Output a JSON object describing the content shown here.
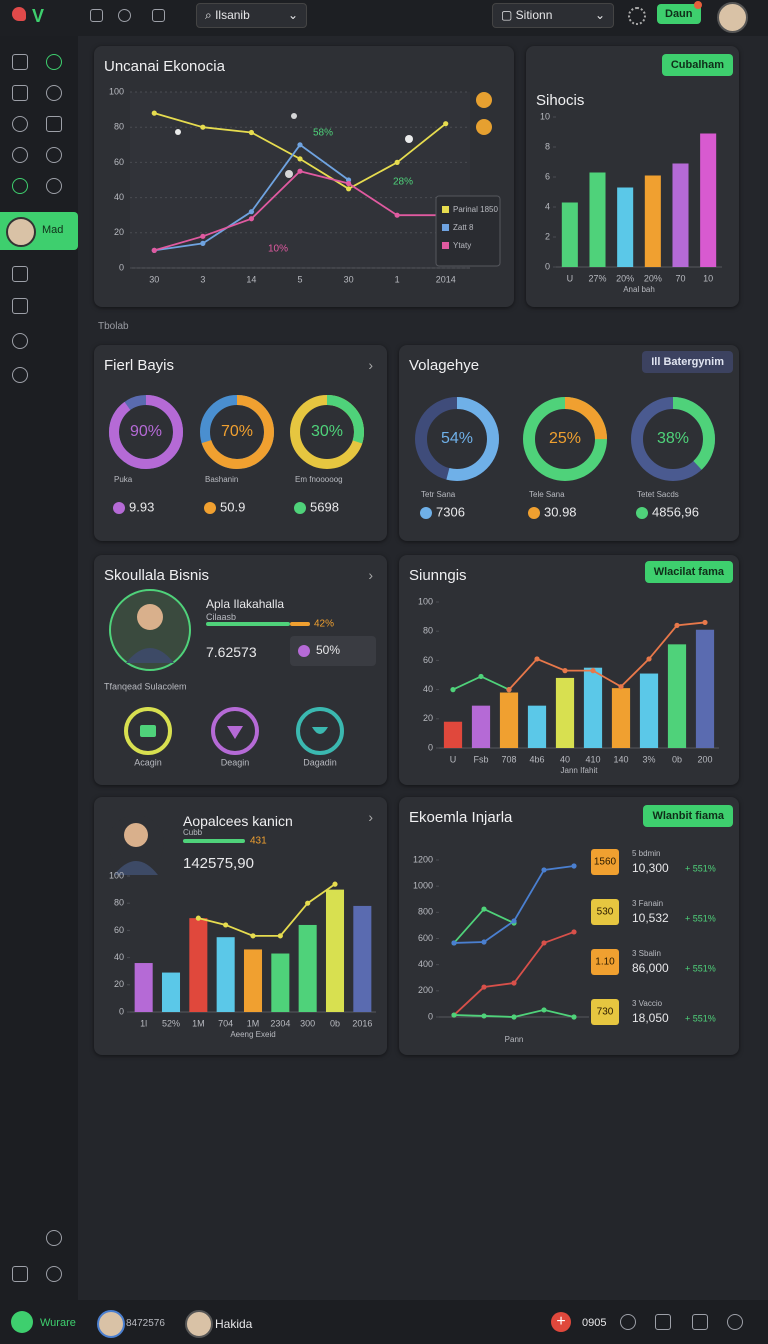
{
  "topbar": {
    "search": "Ilsanib",
    "select": "Sitionn",
    "button": "Daun"
  },
  "sidebar": {
    "active": "Mad"
  },
  "section_label": "Tbolab",
  "panels": [
    {
      "title": "Uncanai Ekonocia",
      "chart": {
        "type": "line",
        "categories": [
          "30",
          "3",
          "14",
          "5",
          "30",
          "1",
          "2014"
        ],
        "ylim": [
          0,
          100
        ],
        "yticks": [
          0,
          20,
          40,
          60,
          80,
          100
        ],
        "grid": true,
        "legend": "right",
        "annotations": [
          "58%",
          "10%",
          "28%"
        ],
        "series": [
          {
            "name": "Parinal 1850",
            "color": "#e6dc4f",
            "values": [
              88,
              80,
              77,
              62,
              45,
              60,
              82
            ]
          },
          {
            "name": "Zatt 8",
            "color": "#6fa3e0",
            "values": [
              10,
              14,
              32,
              70,
              50,
              null,
              null
            ]
          },
          {
            "name": "Ytaty",
            "color": "#e05aa0",
            "values": [
              10,
              18,
              28,
              55,
              48,
              30,
              30
            ]
          }
        ]
      }
    },
    {
      "title": "Sihocis",
      "button": "Cubalham",
      "chart": {
        "type": "bar",
        "x_label": "Anal bah",
        "categories": [
          "U",
          "27%",
          "20%",
          "20%",
          "70",
          "10"
        ],
        "values": [
          4.3,
          6.3,
          5.3,
          6.1,
          6.9,
          8.9
        ],
        "colors": [
          "#4fd27a",
          "#4fd27a",
          "#5bc8e8",
          "#f0a030",
          "#b56ad6",
          "#d85ad0"
        ],
        "ylim": [
          0,
          10
        ],
        "yticks": [
          0,
          2,
          4,
          6,
          8,
          10
        ],
        "grid": false
      }
    },
    {
      "title": "Fierl Bayis",
      "donuts": {
        "values": [
          90,
          70,
          30
        ],
        "value_labels": [
          "90%",
          "70%",
          "30%"
        ],
        "colors": [
          "#b56ad6",
          "#f0a030",
          "#4fd27a"
        ],
        "track_colors": [
          "#5a6bb0",
          "#4a8fd0",
          "#e6c640"
        ],
        "labels": [
          "Puka",
          "Bashanin",
          "Em fnooooog"
        ],
        "stats": [
          "9.93",
          "50.9",
          "5698"
        ]
      }
    },
    {
      "title": "Volagehye",
      "button": "Ill Batergynim",
      "donuts": {
        "values": [
          54,
          25,
          38
        ],
        "value_labels": [
          "54%",
          "25%",
          "38%"
        ],
        "colors": [
          "#6fb0e8",
          "#f0a030",
          "#4fd27a"
        ],
        "track_colors": [
          "#3f4c7a",
          "#4fd27a",
          "#4a5a90"
        ],
        "labels": [
          "Tetr Sana",
          "Tele Sana",
          "Tetet Sacds"
        ],
        "stats": [
          "7306",
          "30.98",
          "4856,96"
        ]
      }
    },
    {
      "title": "Skoullala Bisnis",
      "profile": {
        "name": "Apla Ilakahalla",
        "subtitle": "Cilaasb",
        "progress": {
          "value": 42,
          "label": "42%"
        },
        "amount": "7.62573",
        "chip": "50%"
      },
      "caption": "Tfanqead Sulacolem",
      "actions": [
        "Acagin",
        "Deagin",
        "Dagadin"
      ]
    },
    {
      "title": "Siunngis",
      "button": "Wlacilat fama",
      "chart": {
        "type": "combo",
        "x_label": "Jann Ifahit",
        "categories": [
          "U",
          "Fsb",
          "708",
          "4b6",
          "40",
          "410",
          "140",
          "3%",
          "0b",
          "200"
        ],
        "values": [
          18,
          29,
          38,
          29,
          48,
          55,
          41,
          51,
          71,
          81
        ],
        "colors": [
          "#e0483c",
          "#b56ad6",
          "#f0a030",
          "#5bc8e8",
          "#d8e050",
          "#5bc8e8",
          "#f0a030",
          "#5bc8e8",
          "#4fd27a",
          "#5a6bb0"
        ],
        "series": [
          {
            "color": "#4fd27a",
            "values": [
              40,
              49,
              40,
              null,
              null,
              null,
              null,
              null,
              null,
              null
            ]
          },
          {
            "color": "#e8784a",
            "values": [
              null,
              null,
              40,
              61,
              53,
              53,
              42,
              61,
              84,
              86
            ]
          }
        ],
        "ylim": [
          0,
          100
        ],
        "yticks": [
          0,
          20,
          40,
          60,
          80,
          100
        ],
        "grid": false
      }
    },
    {
      "title": "Aopalcees kanicn",
      "profile": {
        "subtitle": "Cubb",
        "badge": "431",
        "amount": "142575,90"
      },
      "chart": {
        "type": "combo",
        "x_label": "Aeeng Exeid",
        "categories": [
          "1l",
          "52%",
          "1M",
          "704",
          "1M",
          "2304",
          "300",
          "0b",
          "2016"
        ],
        "values": [
          36,
          29,
          69,
          55,
          46,
          43,
          64,
          90,
          78
        ],
        "colors": [
          "#b56ad6",
          "#5bc8e8",
          "#e0483c",
          "#5bc8e8",
          "#f0a030",
          "#4fd27a",
          "#4fd27a",
          "#d8e050",
          "#5a6bb0"
        ],
        "series": [
          {
            "color": "#e6dc4f",
            "values": [
              null,
              null,
              69,
              64,
              56,
              56,
              80,
              94,
              null
            ]
          }
        ],
        "ylim": [
          0,
          100
        ],
        "yticks": [
          0,
          20,
          40,
          60,
          80,
          100
        ],
        "grid": false
      }
    },
    {
      "title": "Ekoemla Injarla",
      "button": "Wlanbit fiama",
      "chart": {
        "type": "line",
        "x_label": "Pann",
        "categories": [
          null,
          null,
          null,
          null,
          null
        ],
        "ylim": [
          0,
          1200
        ],
        "yticks": [
          0,
          200,
          400,
          600,
          800,
          1000,
          1200
        ],
        "grid": false,
        "series": [
          {
            "color": "#4fd27a",
            "values": [
              566,
              825,
              718,
              null,
              null
            ]
          },
          {
            "color": "#4a7fd0",
            "values": [
              566,
              573,
              734,
              1124,
              1154
            ]
          },
          {
            "color": "#d8504a",
            "values": [
              15,
              229,
              260,
              566,
              650
            ]
          },
          {
            "color": "#4fd27a",
            "values": [
              15,
              8,
              0,
              54,
              0
            ]
          }
        ]
      },
      "list": [
        {
          "badge": "1560",
          "name": "5 bdmin",
          "amount": "10,300",
          "change": "+ 551%"
        },
        {
          "badge": "530",
          "name": "3 Fanain",
          "amount": "10,532",
          "change": "+ 551%"
        },
        {
          "badge": "1.10",
          "name": "3 Sbalin",
          "amount": "86,000",
          "change": "+ 551%"
        },
        {
          "badge": "730",
          "name": "3 Vaccio",
          "amount": "18,050",
          "change": "+ 551%"
        }
      ]
    }
  ],
  "bottombar": {
    "status": "Wurare",
    "user1": "8472576",
    "user2": "Hakida",
    "code": "0905"
  }
}
